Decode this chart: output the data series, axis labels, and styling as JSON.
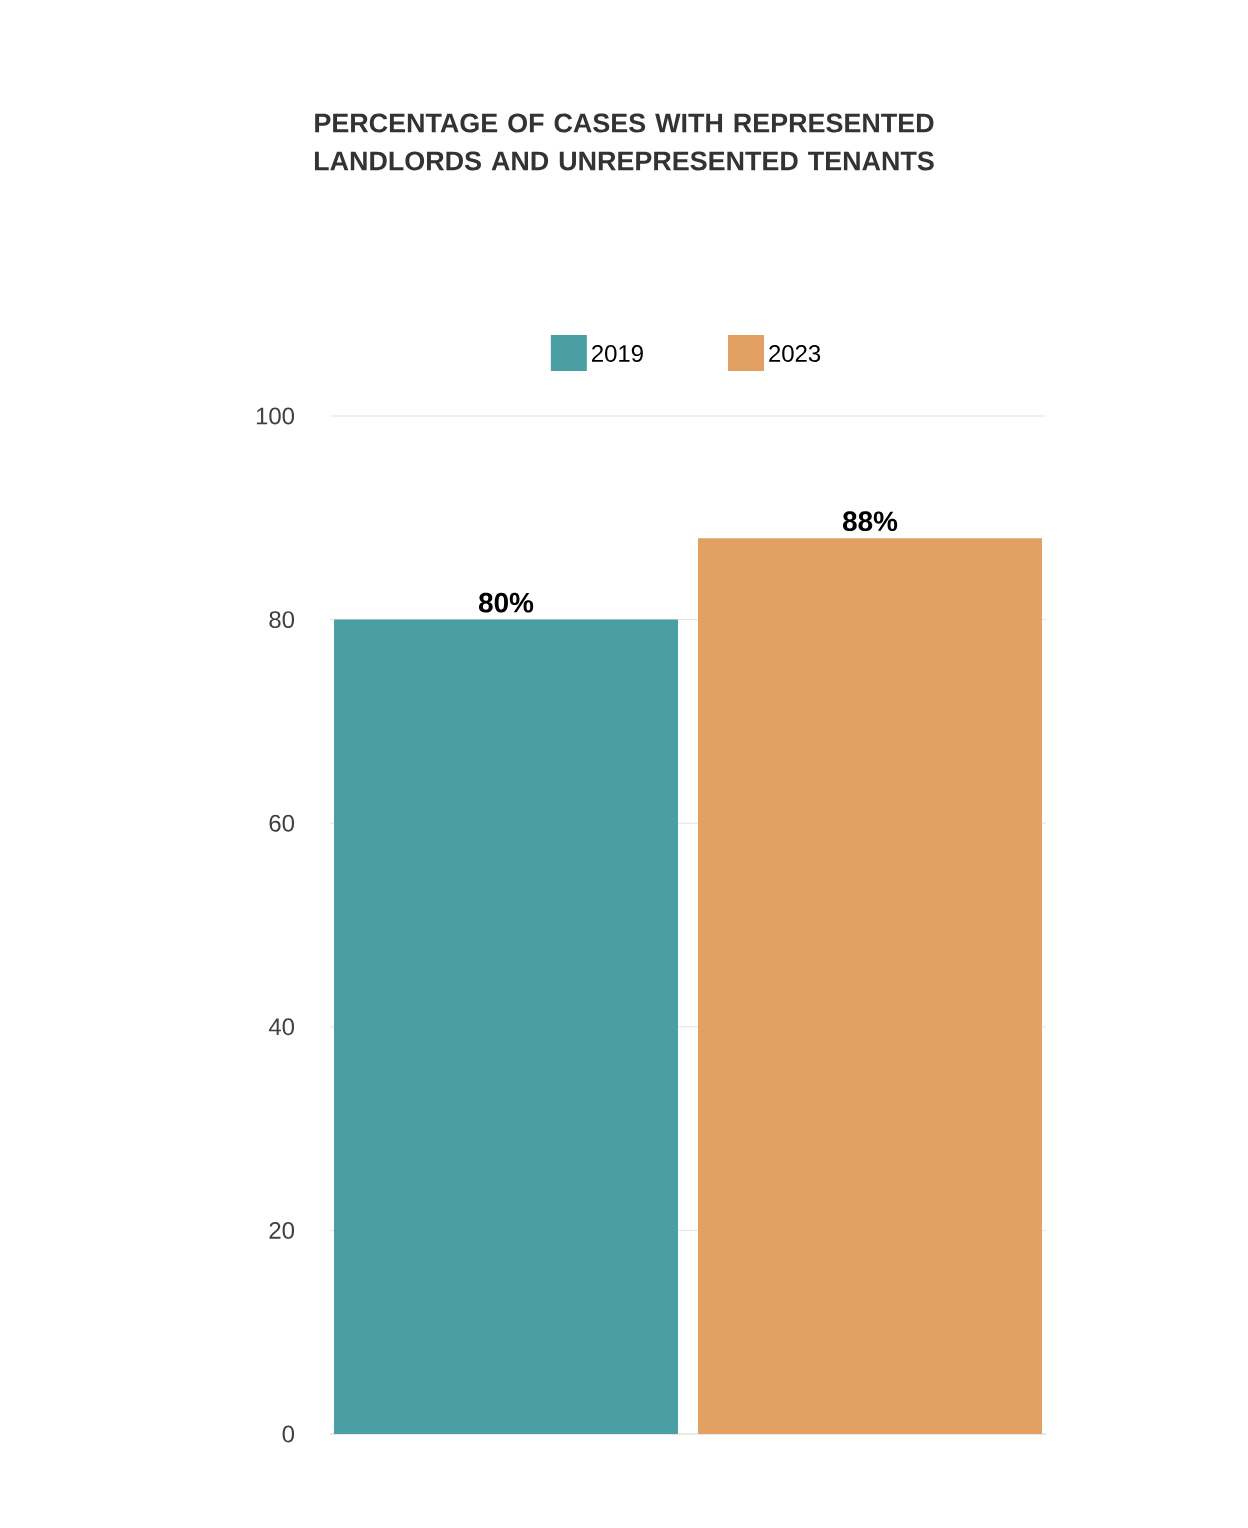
{
  "chart_data": {
    "type": "bar",
    "title": "PERCENTAGE OF CASES WITH REPRESENTED LANDLORDS AND UNREPRESENTED TENANTS",
    "categories": [
      null
    ],
    "series": [
      {
        "name": "2019",
        "color": "#4a9fa5",
        "values": [
          80
        ],
        "value_labels": [
          "80%"
        ]
      },
      {
        "name": "2023",
        "color": "#e2a062",
        "values": [
          88
        ],
        "value_labels": [
          "88%"
        ]
      }
    ],
    "ylim": [
      0,
      100
    ],
    "yticks": [
      0,
      20,
      40,
      60,
      80,
      100
    ],
    "grid": "y",
    "legend": "top"
  }
}
